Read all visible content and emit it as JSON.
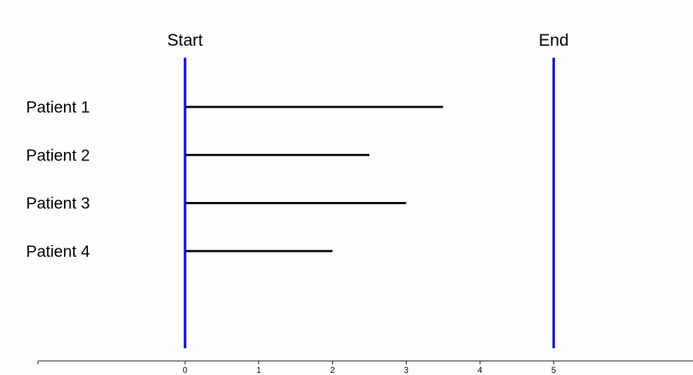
{
  "chart_data": {
    "type": "bar",
    "orientation": "horizontal",
    "markers": [
      {
        "label": "Start",
        "x": 0,
        "color": "#0a10c8"
      },
      {
        "label": "End",
        "x": 5,
        "color": "#0a10c8"
      }
    ],
    "categories": [
      "Patient 1",
      "Patient 2",
      "Patient 3",
      "Patient 4"
    ],
    "values": [
      3.5,
      2.5,
      3.0,
      2.0
    ],
    "bar_color": "#000000",
    "x_ticks": [
      "0",
      "1",
      "2",
      "3",
      "4",
      "5"
    ],
    "xlim": [
      -2,
      7
    ],
    "grid": false,
    "title": "",
    "xlabel": "",
    "ylabel": ""
  }
}
